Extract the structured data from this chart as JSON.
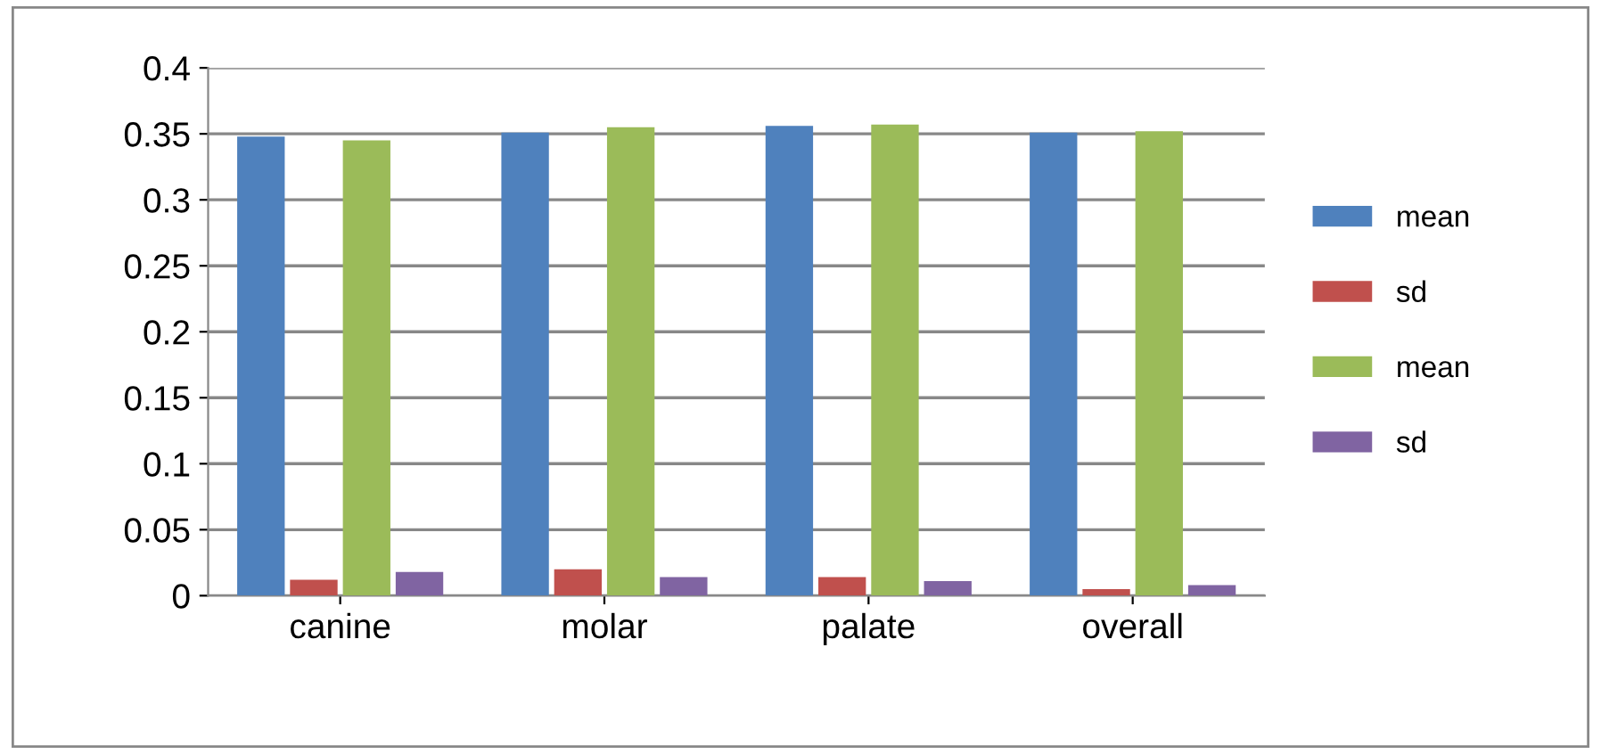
{
  "chart_data": {
    "type": "bar",
    "categories": [
      "canine",
      "molar",
      "palate",
      "overall"
    ],
    "series": [
      {
        "name": "mean",
        "color": "#4f81bd",
        "values": [
          0.348,
          0.351,
          0.356,
          0.351
        ]
      },
      {
        "name": "sd",
        "color": "#c0504d",
        "values": [
          0.012,
          0.02,
          0.014,
          0.005
        ]
      },
      {
        "name": "mean",
        "color": "#9bbb59",
        "values": [
          0.345,
          0.355,
          0.357,
          0.352
        ]
      },
      {
        "name": "sd",
        "color": "#8064a2",
        "values": [
          0.018,
          0.014,
          0.011,
          0.008
        ]
      }
    ],
    "ylim": [
      0,
      0.4
    ],
    "yticks": [
      {
        "value": 0,
        "label": "0"
      },
      0.05,
      0.1,
      0.15,
      0.2,
      0.25,
      0.3,
      0.35,
      0.4
    ],
    "grid": "y",
    "legend": "right"
  }
}
